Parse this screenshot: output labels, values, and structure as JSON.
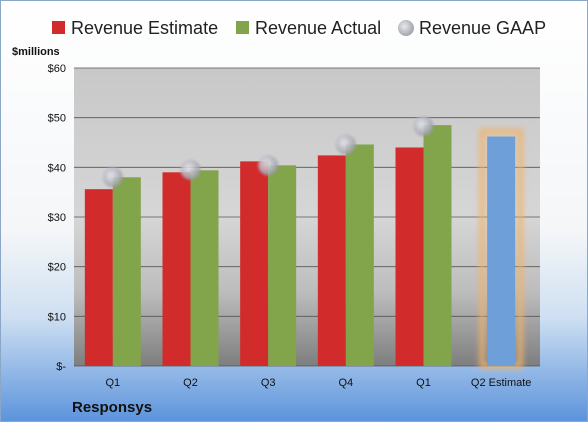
{
  "chart_data": {
    "type": "bar",
    "unit_label": "$millions",
    "footer_label": "Responsys",
    "categories": [
      "Q1",
      "Q2",
      "Q3",
      "Q4",
      "Q1",
      "Q2 Estimate"
    ],
    "series": [
      {
        "name": "Revenue Estimate",
        "color": "#d22b2b",
        "values": [
          35.6,
          39.0,
          41.2,
          42.4,
          44.0,
          null
        ]
      },
      {
        "name": "Revenue Actual",
        "color": "#82a44a",
        "values": [
          38.0,
          39.4,
          40.4,
          44.6,
          48.5,
          null
        ]
      },
      {
        "name": "Revenue GAAP",
        "color": "#b0b0b8",
        "marker": "circle",
        "values": [
          38.0,
          39.5,
          40.4,
          44.6,
          48.3,
          null
        ]
      }
    ],
    "q2_estimate": {
      "value": 46.2,
      "color": "#6f9fd8",
      "glow": "#f0b36a"
    },
    "ylim": [
      0,
      60
    ],
    "yticks": [
      {
        "value": 0,
        "label": "$-"
      },
      {
        "value": 10,
        "label": "$10"
      },
      {
        "value": 20,
        "label": "$20"
      },
      {
        "value": 30,
        "label": "$30"
      },
      {
        "value": 40,
        "label": "$40"
      },
      {
        "value": 50,
        "label": "$50"
      },
      {
        "value": 60,
        "label": "$60"
      }
    ],
    "grid": true,
    "legend_position": "top"
  }
}
